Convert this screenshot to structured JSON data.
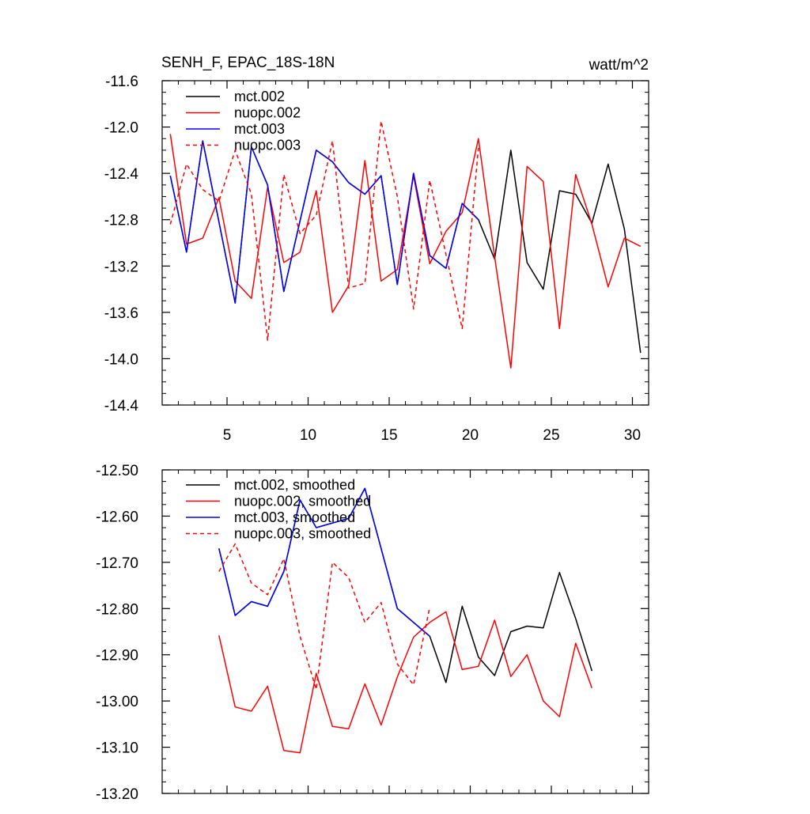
{
  "chart_data": [
    {
      "type": "line",
      "title": "SENH_F, EPAC_18S-18N",
      "units": "watt/m^2",
      "xlim": [
        1,
        31
      ],
      "ylim": [
        -14.4,
        -11.6
      ],
      "xticks": [
        5,
        10,
        15,
        20,
        25,
        30
      ],
      "yticks": [
        -11.6,
        -12.0,
        -12.4,
        -12.8,
        -13.2,
        -13.6,
        -14.0,
        -14.4
      ],
      "ytick_labels": [
        "-11.6",
        "-12.0",
        "-12.4",
        "-12.8",
        "-13.2",
        "-13.6",
        "-14.0",
        "-14.4"
      ],
      "xtick_labels": [
        "5",
        "10",
        "15",
        "20",
        "25",
        "30"
      ],
      "show_xlabels": true,
      "legend_position": "top-left",
      "series": [
        {
          "name": "mct.002",
          "color": "#000000",
          "dash": "solid",
          "x": [
            1.5,
            2.5,
            3.5,
            4.5,
            5.5,
            6.5,
            7.5,
            8.5,
            9.5,
            10.5,
            11.5,
            12.5,
            13.5,
            14.5,
            15.5,
            16.5,
            17.5,
            18.5,
            19.5,
            20.5,
            21.5,
            22.5,
            23.5,
            24.5,
            25.5,
            26.5,
            27.5,
            28.5,
            29.5,
            30.5
          ],
          "y": [
            -12.42,
            -13.08,
            -12.12,
            -12.82,
            -13.52,
            -12.17,
            -12.5,
            -13.42,
            -12.81,
            -12.2,
            -12.3,
            -12.48,
            -12.58,
            -12.42,
            -13.36,
            -12.4,
            -13.11,
            -13.22,
            -12.66,
            -12.8,
            -13.14,
            -12.2,
            -13.17,
            -13.4,
            -12.55,
            -12.58,
            -12.83,
            -12.32,
            -12.88,
            -13.95
          ]
        },
        {
          "name": "nuopc.002",
          "color": "#ff0000",
          "dash": "solid",
          "x": [
            1.5,
            2.5,
            3.5,
            4.5,
            5.5,
            6.5,
            7.5,
            8.5,
            9.5,
            10.5,
            11.5,
            12.5,
            13.5,
            14.5,
            15.5,
            16.5,
            17.5,
            18.5,
            19.5,
            20.5,
            21.5,
            22.5,
            23.5,
            24.5,
            25.5,
            26.5,
            27.5,
            28.5,
            29.5,
            30.5
          ],
          "y": [
            -12.06,
            -13.01,
            -12.96,
            -12.61,
            -13.33,
            -13.48,
            -12.52,
            -13.17,
            -13.08,
            -12.55,
            -13.6,
            -13.37,
            -12.29,
            -13.33,
            -13.23,
            -12.42,
            -13.18,
            -12.9,
            -12.74,
            -12.1,
            -13.12,
            -14.08,
            -12.34,
            -12.47,
            -13.74,
            -12.41,
            -12.84,
            -13.38,
            -12.96,
            -13.03
          ]
        },
        {
          "name": "mct.003",
          "color": "#0000ff",
          "dash": "solid",
          "x": [
            1.5,
            2.5,
            3.5,
            4.5,
            5.5,
            6.5,
            7.5,
            8.5,
            9.5,
            10.5,
            11.5,
            12.5,
            13.5,
            14.5,
            15.5,
            16.5,
            17.5,
            18.5,
            19.5,
            20.5
          ],
          "y": [
            -12.42,
            -13.08,
            -12.12,
            -12.82,
            -13.52,
            -12.17,
            -12.5,
            -13.42,
            -12.81,
            -12.2,
            -12.3,
            -12.48,
            -12.58,
            -12.42,
            -13.36,
            -12.4,
            -13.11,
            -13.22,
            -12.66,
            -12.8
          ]
        },
        {
          "name": "nuopc.003",
          "color": "#ff0000",
          "dash": "dashed",
          "x": [
            1.5,
            2.5,
            3.5,
            4.5,
            5.5,
            6.5,
            7.5,
            8.5,
            9.5,
            10.5,
            11.5,
            12.5,
            13.5,
            14.5,
            15.5,
            16.5,
            17.5,
            18.5,
            19.5,
            20.5
          ],
          "y": [
            -12.84,
            -12.32,
            -12.54,
            -12.64,
            -12.2,
            -12.58,
            -13.84,
            -12.41,
            -12.92,
            -12.76,
            -12.12,
            -13.39,
            -13.35,
            -11.95,
            -12.6,
            -13.57,
            -12.46,
            -13.1,
            -13.74,
            -12.18
          ]
        }
      ]
    },
    {
      "type": "line",
      "title": "",
      "units": "",
      "xlim": [
        1,
        31
      ],
      "ylim": [
        -13.2,
        -12.5
      ],
      "xticks": [
        5,
        10,
        15,
        20,
        25,
        30
      ],
      "yticks": [
        -12.5,
        -12.6,
        -12.7,
        -12.8,
        -12.9,
        -13.0,
        -13.1,
        -13.2
      ],
      "ytick_labels": [
        "-12.50",
        "-12.60",
        "-12.70",
        "-12.80",
        "-12.90",
        "-13.00",
        "-13.10",
        "-13.20"
      ],
      "xtick_labels": [],
      "show_xlabels": false,
      "legend_position": "top-left",
      "series": [
        {
          "name": "mct.002, smoothed",
          "color": "#000000",
          "dash": "solid",
          "x": [
            4.5,
            5.5,
            6.5,
            7.5,
            8.5,
            9.5,
            10.5,
            11.5,
            12.5,
            13.5,
            14.5,
            15.5,
            16.5,
            17.5,
            18.5,
            19.5,
            20.5,
            21.5,
            22.5,
            23.5,
            24.5,
            25.5,
            26.5,
            27.5
          ],
          "y": [
            -12.67,
            -12.815,
            -12.785,
            -12.795,
            -12.72,
            -12.565,
            -12.625,
            -12.615,
            -12.605,
            -12.54,
            -12.67,
            -12.8,
            -12.83,
            -12.86,
            -12.96,
            -12.795,
            -12.905,
            -12.945,
            -12.85,
            -12.838,
            -12.842,
            -12.722,
            -12.822,
            -12.935
          ]
        },
        {
          "name": "nuopc.002, smoothed",
          "color": "#ff0000",
          "dash": "solid",
          "x": [
            4.5,
            5.5,
            6.5,
            7.5,
            8.5,
            9.5,
            10.5,
            11.5,
            12.5,
            13.5,
            14.5,
            15.5,
            16.5,
            17.5,
            18.5,
            19.5,
            20.5,
            21.5,
            22.5,
            23.5,
            24.5,
            25.5,
            26.5,
            27.5
          ],
          "y": [
            -12.858,
            -13.013,
            -13.022,
            -12.968,
            -13.107,
            -13.112,
            -12.94,
            -13.055,
            -13.06,
            -12.963,
            -13.052,
            -12.948,
            -12.862,
            -12.83,
            -12.807,
            -12.932,
            -12.925,
            -12.825,
            -12.947,
            -12.9,
            -13.0,
            -13.034,
            -12.875,
            -12.972
          ]
        },
        {
          "name": "mct.003, smoothed",
          "color": "#0000ff",
          "dash": "solid",
          "x": [
            4.5,
            5.5,
            6.5,
            7.5,
            8.5,
            9.5,
            10.5,
            11.5,
            12.5,
            13.5,
            14.5,
            15.5,
            16.5,
            17.5
          ],
          "y": [
            -12.67,
            -12.815,
            -12.785,
            -12.795,
            -12.72,
            -12.565,
            -12.625,
            -12.615,
            -12.605,
            -12.54,
            -12.67,
            -12.8,
            -12.83,
            -12.86
          ]
        },
        {
          "name": "nuopc.003, smoothed",
          "color": "#ff0000",
          "dash": "dashed",
          "x": [
            4.5,
            5.5,
            6.5,
            7.5,
            8.5,
            9.5,
            10.5,
            11.5,
            12.5,
            13.5,
            14.5,
            15.5,
            16.5,
            17.5
          ],
          "y": [
            -12.72,
            -12.66,
            -12.745,
            -12.77,
            -12.692,
            -12.86,
            -12.975,
            -12.7,
            -12.733,
            -12.83,
            -12.787,
            -12.92,
            -12.965,
            -12.797
          ]
        }
      ]
    }
  ]
}
